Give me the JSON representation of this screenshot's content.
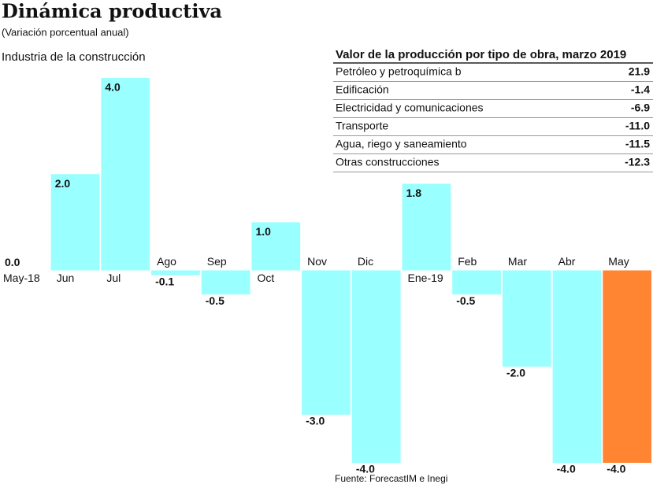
{
  "chart_data": {
    "type": "bar",
    "title": "Dinámica productiva",
    "subtitle": "(Variación porcentual anual)",
    "chart_title": "Industria de la construcción",
    "categories": [
      "May-18",
      "Jun",
      "Jul",
      "Ago",
      "Sep",
      "Oct",
      "Nov",
      "Dic",
      "Ene-19",
      "Feb",
      "Mar",
      "Abr",
      "May"
    ],
    "values": [
      0,
      2,
      4,
      -0.1,
      -0.5,
      1,
      -3,
      -4,
      1.8,
      -0.5,
      -2,
      -4,
      -4
    ],
    "value_labels": [
      "0.0",
      "2.0",
      "4.0",
      "-0.1",
      "-0.5",
      "1.0",
      "-3.0",
      "-4.0",
      "1.8",
      "-0.5",
      "-2.0",
      "-4.0",
      "-4.0"
    ],
    "colors": [
      "#99ffff",
      "#99ffff",
      "#99ffff",
      "#99ffff",
      "#99ffff",
      "#99ffff",
      "#99ffff",
      "#99ffff",
      "#99ffff",
      "#99ffff",
      "#99ffff",
      "#99ffff",
      "#ff8533"
    ],
    "ylim": [
      -4,
      4
    ],
    "source": "Fuente: ForecastIM e Inegi"
  },
  "table": {
    "title": "Valor de la producción por tipo de obra, marzo 2019",
    "rows": [
      [
        "Petróleo y petroquímica b",
        "21.9"
      ],
      [
        "Edificación",
        "-1.4"
      ],
      [
        "Electricidad y comunicaciones",
        "-6.9"
      ],
      [
        "Transporte",
        "-11.0"
      ],
      [
        "Agua, riego y saneamiento",
        "-11.5"
      ],
      [
        "Otras construcciones",
        "-12.3"
      ]
    ]
  }
}
